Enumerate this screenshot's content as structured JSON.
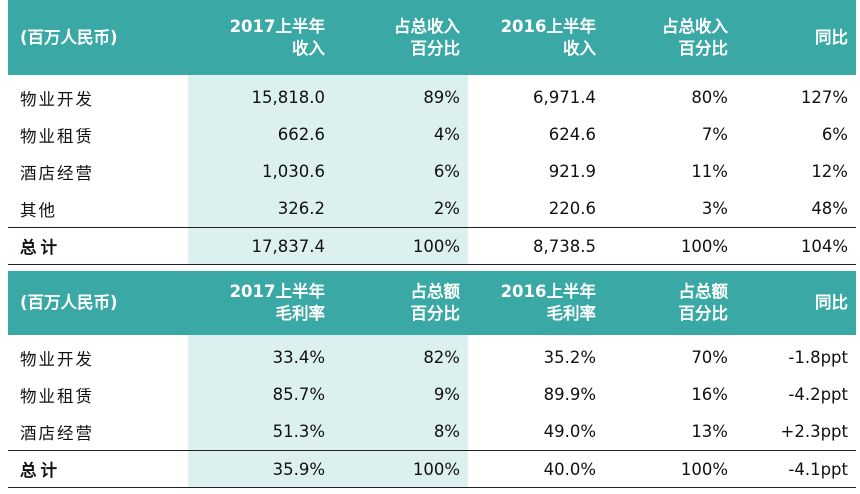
{
  "table1": {
    "header": {
      "label": "(百万人民币)",
      "col1": [
        "2017上半年",
        "收入"
      ],
      "col2": [
        "占总收入",
        "百分比"
      ],
      "col3": [
        "2016上半年",
        "收入"
      ],
      "col4": [
        "占总收入",
        "百分比"
      ],
      "col5": "同比"
    },
    "rows": [
      [
        "物业开发",
        "15,818.0",
        "89%",
        "6,971.4",
        "80%",
        "127%"
      ],
      [
        "物业租赁",
        "662.6",
        "4%",
        "624.6",
        "7%",
        "6%"
      ],
      [
        "酒店经营",
        "1,030.6",
        "6%",
        "921.9",
        "11%",
        "12%"
      ],
      [
        "其他",
        "326.2",
        "2%",
        "220.6",
        "3%",
        "48%"
      ]
    ],
    "total": [
      "总计",
      "17,837.4",
      "100%",
      "8,738.5",
      "100%",
      "104%"
    ]
  },
  "table2": {
    "header": {
      "label": "(百万人民币)",
      "col1": [
        "2017上半年",
        "毛利率"
      ],
      "col2": [
        "占总额",
        "百分比"
      ],
      "col3": [
        "2016上半年",
        "毛利率"
      ],
      "col4": [
        "占总额",
        "百分比"
      ],
      "col5": "同比"
    },
    "rows": [
      [
        "物业开发",
        "33.4%",
        "82%",
        "35.2%",
        "70%",
        "-1.8ppt"
      ],
      [
        "物业租赁",
        "85.7%",
        "9%",
        "89.9%",
        "16%",
        "-4.2ppt"
      ],
      [
        "酒店经营",
        "51.3%",
        "8%",
        "49.0%",
        "13%",
        "+2.3ppt"
      ]
    ],
    "total": [
      "总计",
      "35.9%",
      "100%",
      "40.0%",
      "100%",
      "-4.1ppt"
    ]
  },
  "colors": {
    "header_bg": "#3aa8a4",
    "highlight_bg": "#dcf0ef"
  }
}
